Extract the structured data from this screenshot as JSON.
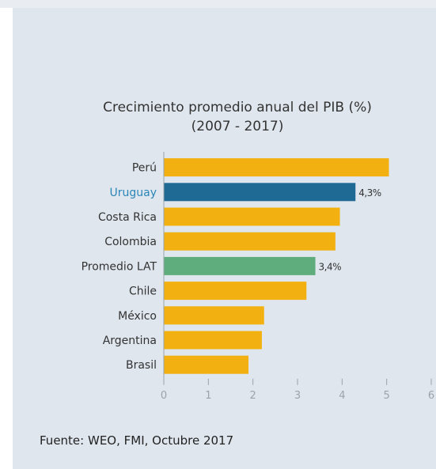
{
  "chart_data": {
    "type": "bar",
    "orientation": "horizontal",
    "title": "Crecimiento promedio anual del PIB (%)",
    "subtitle": "(2007 - 2017)",
    "categories": [
      "Perú",
      "Uruguay",
      "Costa Rica",
      "Colombia",
      "Promedio LAT",
      "Chile",
      "México",
      "Argentina",
      "Brasil"
    ],
    "values": [
      5.05,
      4.3,
      3.95,
      3.85,
      3.4,
      3.2,
      2.25,
      2.2,
      1.9
    ],
    "data_labels": [
      "",
      "4,3%",
      "",
      "",
      "3,4%",
      "",
      "",
      "",
      ""
    ],
    "highlight": [
      "default",
      "uruguay",
      "default",
      "default",
      "average",
      "default",
      "default",
      "default",
      "default"
    ],
    "xticks": [
      "0",
      "1",
      "2",
      "3",
      "4",
      "5",
      "6"
    ],
    "xlim": [
      0,
      6
    ],
    "grid": false,
    "colors": {
      "default": "#f2b111",
      "uruguay": "#1f6a94",
      "average": "#5fac7c",
      "highlight_label": "#2b86b8",
      "panel": "#dfe6ee"
    }
  },
  "footer": {
    "source": "Fuente: WEO, FMI, Octubre 2017"
  }
}
